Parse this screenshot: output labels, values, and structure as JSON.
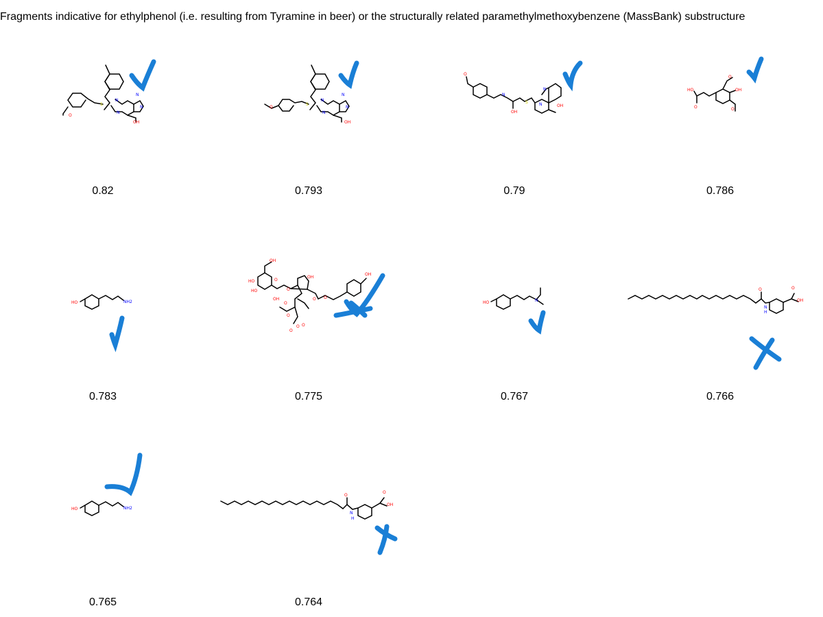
{
  "header": {
    "title": "Fragments indicative for ethylphenol (i.e. resulting from Tyramine in beer) or the structurally related paramethylmethoxybenzene (MassBank) substructure"
  },
  "colors": {
    "bond": "#000000",
    "oxygen": "#ff0000",
    "nitrogen": "#0000ff",
    "sulfur": "#cccc00",
    "annotation": "#1a7fd6"
  },
  "results": [
    {
      "score": "0.82",
      "mark": "check",
      "atom_labels": [
        "O",
        "S",
        "N",
        "N",
        "N",
        "N",
        "OH"
      ]
    },
    {
      "score": "0.793",
      "mark": "check",
      "atom_labels": [
        "O",
        "S",
        "N",
        "N",
        "N",
        "N",
        "OH"
      ]
    },
    {
      "score": "0.79",
      "mark": "check",
      "atom_labels": [
        "O",
        "N",
        "OH",
        "S",
        "N",
        "N",
        "OH"
      ]
    },
    {
      "score": "0.786",
      "mark": "check",
      "atom_labels": [
        "HO",
        "O",
        "OH",
        "O",
        "O"
      ]
    },
    {
      "score": "0.783",
      "mark": "check",
      "atom_labels": [
        "HO",
        "NH2"
      ]
    },
    {
      "score": "0.775",
      "mark": "check-cross",
      "atom_labels": [
        "OH",
        "HO",
        "HO",
        "OH",
        "O",
        "O",
        "OH",
        "O",
        "O",
        "O",
        "O",
        "OH",
        "O",
        "O",
        "O"
      ]
    },
    {
      "score": "0.767",
      "mark": "check",
      "atom_labels": [
        "HO",
        "N"
      ]
    },
    {
      "score": "0.766",
      "mark": "cross",
      "atom_labels": [
        "O",
        "OH",
        "O",
        "N",
        "H"
      ]
    },
    {
      "score": "0.765",
      "mark": "check",
      "atom_labels": [
        "HO",
        "NH2"
      ]
    },
    {
      "score": "0.764",
      "mark": "cross",
      "atom_labels": [
        "O",
        "OH",
        "O",
        "N",
        "H"
      ]
    }
  ]
}
